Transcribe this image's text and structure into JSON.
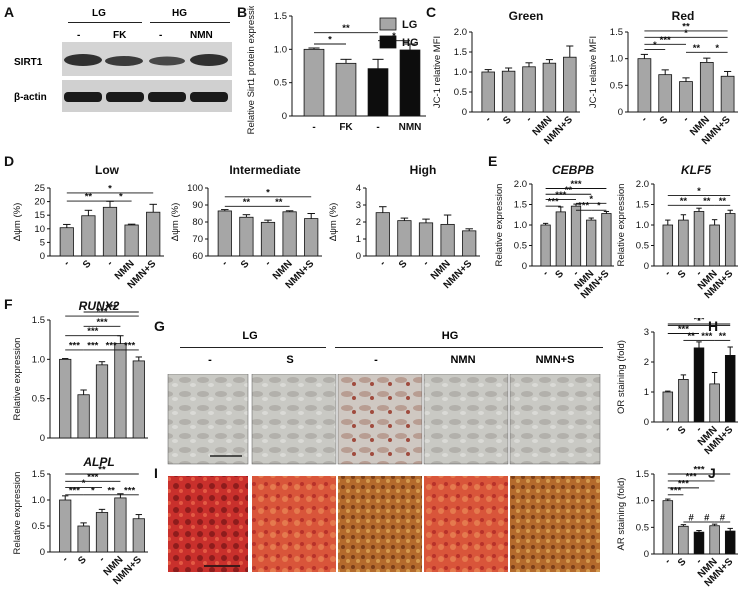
{
  "panel_letters": {
    "A": "A",
    "B": "B",
    "C": "C",
    "D": "D",
    "E": "E",
    "F": "F",
    "G": "G",
    "H": "H",
    "I": "I",
    "J": "J"
  },
  "blot": {
    "group_labels": [
      "LG",
      "HG"
    ],
    "lane_labels": [
      "-",
      "FK",
      "-",
      "NMN"
    ],
    "row_labels": [
      "SIRT1",
      "β-actin"
    ]
  },
  "micro": {
    "group_labels": [
      "LG",
      "HG"
    ],
    "column_labels": [
      "-",
      "S",
      "-",
      "NMN",
      "NMN+S"
    ]
  },
  "colors": {
    "gray": "#a6a6a6",
    "black": "#0d0d0d",
    "line": "#222222"
  },
  "chart_data": [
    {
      "id": "B",
      "type": "bar",
      "title": "",
      "ylabel": "Relative Sirt1 protein expression",
      "categories": [
        "-",
        "FK",
        "-",
        "NMN"
      ],
      "ylim": [
        0,
        1.5
      ],
      "yticks": [
        0,
        0.5,
        1.0,
        1.5
      ],
      "yticklabels": [
        "0",
        "0.5",
        "1.0",
        "1.5"
      ],
      "values": [
        1.0,
        0.79,
        0.71,
        0.99
      ],
      "errors": [
        0.02,
        0.06,
        0.14,
        0.09
      ],
      "colors": [
        "gray",
        "gray",
        "black",
        "black"
      ],
      "legend": [
        {
          "name": "LG",
          "color": "gray"
        },
        {
          "name": "HG",
          "color": "black"
        }
      ],
      "legend_position": "top-right",
      "sig": [
        {
          "i": 0,
          "j": 1,
          "label": "*",
          "y": 1.08
        },
        {
          "i": 2,
          "j": 3,
          "label": "*",
          "y": 1.13
        },
        {
          "i": 0,
          "j": 2,
          "label": "**",
          "y": 1.25
        }
      ]
    },
    {
      "id": "C1",
      "type": "bar",
      "title": "Green",
      "ylabel": "JC-1 relative MFI",
      "categories": [
        "-",
        "S",
        "-",
        "NMN",
        "NMN+S"
      ],
      "ylim": [
        0,
        2.0
      ],
      "yticks": [
        0,
        0.5,
        1.0,
        1.5,
        2.0
      ],
      "yticklabels": [
        "0",
        "0.5",
        "1.0",
        "1.5",
        "2.0"
      ],
      "values": [
        1.0,
        1.02,
        1.13,
        1.22,
        1.37
      ],
      "errors": [
        0.06,
        0.08,
        0.1,
        0.09,
        0.28
      ],
      "colors": [
        "gray",
        "gray",
        "gray",
        "gray",
        "gray"
      ],
      "sig": []
    },
    {
      "id": "C2",
      "type": "bar",
      "title": "Red",
      "ylabel": "JC-1 relative MFI",
      "categories": [
        "-",
        "S",
        "-",
        "NMN",
        "NMN+S"
      ],
      "ylim": [
        0,
        1.5
      ],
      "yticks": [
        0,
        0.5,
        1.0,
        1.5
      ],
      "yticklabels": [
        "0",
        "0.5",
        "1.0",
        "1.5"
      ],
      "values": [
        1.0,
        0.7,
        0.57,
        0.93,
        0.67
      ],
      "errors": [
        0.08,
        0.09,
        0.07,
        0.08,
        0.09
      ],
      "colors": [
        "gray",
        "gray",
        "gray",
        "gray",
        "gray"
      ],
      "sig": [
        {
          "i": 0,
          "j": 1,
          "label": "*",
          "y": 1.17
        },
        {
          "i": 3,
          "j": 4,
          "label": "*",
          "y": 1.12
        },
        {
          "i": 2,
          "j": 3,
          "label": "**",
          "y": 1.12
        },
        {
          "i": 0,
          "j": 2,
          "label": "***",
          "y": 1.27
        },
        {
          "i": 0,
          "j": 4,
          "label": "*",
          "y": 1.4
        },
        {
          "i": 0,
          "j": 4,
          "label": "**",
          "y": 1.52
        }
      ]
    },
    {
      "id": "D1",
      "type": "bar",
      "title": "Low",
      "ylabel": "Δψm (%)",
      "categories": [
        "-",
        "S",
        "-",
        "NMN",
        "NMN+S"
      ],
      "ylim": [
        0,
        25
      ],
      "yticks": [
        0,
        5,
        10,
        15,
        20,
        25
      ],
      "yticklabels": [
        "0",
        "5",
        "10",
        "15",
        "20",
        "25"
      ],
      "values": [
        10.4,
        14.8,
        17.9,
        11.4,
        16.1
      ],
      "errors": [
        1.2,
        2.0,
        2.2,
        0.3,
        2.9
      ],
      "colors": [
        "gray",
        "gray",
        "gray",
        "gray",
        "gray"
      ],
      "sig": [
        {
          "i": 0,
          "j": 2,
          "label": "**",
          "y": 20.2
        },
        {
          "i": 2,
          "j": 3,
          "label": "*",
          "y": 20.2
        },
        {
          "i": 0,
          "j": 4,
          "label": "*",
          "y": 23.2
        }
      ]
    },
    {
      "id": "D2",
      "type": "bar",
      "title": "Intermediate",
      "ylabel": "Δψm (%)",
      "categories": [
        "-",
        "S",
        "-",
        "NMN",
        "NMN+S"
      ],
      "ylim": [
        60,
        100
      ],
      "yticks": [
        60,
        70,
        80,
        90,
        100
      ],
      "yticklabels": [
        "60",
        "70",
        "80",
        "90",
        "100"
      ],
      "values": [
        86.5,
        82.8,
        79.8,
        86.0,
        82.0
      ],
      "errors": [
        0.8,
        1.5,
        1.3,
        0.6,
        3.0
      ],
      "colors": [
        "gray",
        "gray",
        "gray",
        "gray",
        "gray"
      ],
      "sig": [
        {
          "i": 0,
          "j": 2,
          "label": "**",
          "y": 89.2
        },
        {
          "i": 2,
          "j": 3,
          "label": "**",
          "y": 89.2
        },
        {
          "i": 0,
          "j": 4,
          "label": "*",
          "y": 94.8
        }
      ]
    },
    {
      "id": "D3",
      "type": "bar",
      "title": "High",
      "ylabel": "Δψm (%)",
      "categories": [
        "-",
        "S",
        "-",
        "NMN",
        "NMN+S"
      ],
      "ylim": [
        0,
        4
      ],
      "yticks": [
        0,
        1,
        2,
        3,
        4
      ],
      "yticklabels": [
        "0",
        "1",
        "2",
        "3",
        "4"
      ],
      "values": [
        2.55,
        2.08,
        1.95,
        1.86,
        1.48
      ],
      "errors": [
        0.35,
        0.15,
        0.22,
        0.55,
        0.12
      ],
      "colors": [
        "gray",
        "gray",
        "gray",
        "gray",
        "gray"
      ],
      "sig": []
    },
    {
      "id": "E1",
      "type": "bar",
      "title": "CEBPB",
      "title_italic": true,
      "ylabel": "Relative expression",
      "categories": [
        "-",
        "S",
        "-",
        "NMN",
        "NMN+S"
      ],
      "ylim": [
        0,
        2.0
      ],
      "yticks": [
        0,
        0.5,
        1.0,
        1.5,
        2.0
      ],
      "yticklabels": [
        "0",
        "0.5",
        "1.0",
        "1.5",
        "2.0"
      ],
      "values": [
        1.0,
        1.32,
        1.46,
        1.12,
        1.28
      ],
      "errors": [
        0.04,
        0.12,
        0.05,
        0.05,
        0.05
      ],
      "colors": [
        "gray",
        "gray",
        "gray",
        "gray",
        "gray"
      ],
      "sig": [
        {
          "i": 0,
          "j": 1,
          "label": "***",
          "y": 1.46
        },
        {
          "i": 2,
          "j": 3,
          "label": "***",
          "y": 1.36
        },
        {
          "i": 3,
          "j": 4,
          "label": "*",
          "y": 1.36
        },
        {
          "i": 2,
          "j": 4,
          "label": "*",
          "y": 1.53
        },
        {
          "i": 0,
          "j": 2,
          "label": "***",
          "y": 1.62
        },
        {
          "i": 0,
          "j": 3,
          "label": "**",
          "y": 1.75
        },
        {
          "i": 0,
          "j": 4,
          "label": "***",
          "y": 1.89
        }
      ]
    },
    {
      "id": "E2",
      "type": "bar",
      "title": "KLF5",
      "title_italic": true,
      "ylabel": "Relative expression",
      "categories": [
        "-",
        "S",
        "-",
        "NMN",
        "NMN+S"
      ],
      "ylim": [
        0,
        2.0
      ],
      "yticks": [
        0,
        0.5,
        1.0,
        1.5,
        2.0
      ],
      "yticklabels": [
        "0",
        "0.5",
        "1.0",
        "1.5",
        "2.0"
      ],
      "values": [
        1.0,
        1.12,
        1.33,
        1.0,
        1.28
      ],
      "errors": [
        0.12,
        0.13,
        0.08,
        0.13,
        0.08
      ],
      "colors": [
        "gray",
        "gray",
        "gray",
        "gray",
        "gray"
      ],
      "sig": [
        {
          "i": 0,
          "j": 2,
          "label": "**",
          "y": 1.48
        },
        {
          "i": 2,
          "j": 3,
          "label": "**",
          "y": 1.48
        },
        {
          "i": 3,
          "j": 4,
          "label": "**",
          "y": 1.48
        },
        {
          "i": 0,
          "j": 4,
          "label": "*",
          "y": 1.72
        }
      ]
    },
    {
      "id": "F1",
      "type": "bar",
      "title": "RUNX2",
      "title_italic": true,
      "ylabel": "Relative expression",
      "categories": [
        "-",
        "S",
        "-",
        "NMN",
        "NMN+S"
      ],
      "ylim": [
        0,
        1.5
      ],
      "yticks": [
        0,
        0.5,
        1.0,
        1.5
      ],
      "yticklabels": [
        "0",
        "0.5",
        "1.0",
        "1.5"
      ],
      "values": [
        1.0,
        0.55,
        0.93,
        1.2,
        0.98
      ],
      "errors": [
        0.01,
        0.06,
        0.04,
        0.1,
        0.05
      ],
      "colors": [
        "gray",
        "gray",
        "gray",
        "gray",
        "gray"
      ],
      "sig": [
        {
          "i": 0,
          "j": 1,
          "label": "***",
          "y": 1.12
        },
        {
          "i": 1,
          "j": 2,
          "label": "***",
          "y": 1.12
        },
        {
          "i": 2,
          "j": 3,
          "label": "***",
          "y": 1.12
        },
        {
          "i": 3,
          "j": 4,
          "label": "***",
          "y": 1.12
        },
        {
          "i": 0,
          "j": 3,
          "label": "***",
          "y": 1.3
        },
        {
          "i": 1,
          "j": 3,
          "label": "***",
          "y": 1.42
        },
        {
          "i": 0,
          "j": 4,
          "label": "***",
          "y": 1.55
        },
        {
          "i": 1,
          "j": 4,
          "label": "***",
          "y": 1.67
        }
      ]
    },
    {
      "id": "F2",
      "type": "bar",
      "title": "ALPL",
      "title_italic": true,
      "ylabel": "Relative expression",
      "categories": [
        "-",
        "S",
        "-",
        "NMN",
        "NMN+S"
      ],
      "ylim": [
        0,
        1.5
      ],
      "yticks": [
        0,
        0.5,
        1.0,
        1.5
      ],
      "yticklabels": [
        "0",
        "0.5",
        "1.0",
        "1.5"
      ],
      "values": [
        1.0,
        0.5,
        0.76,
        1.04,
        0.64
      ],
      "errors": [
        0.08,
        0.06,
        0.06,
        0.08,
        0.08
      ],
      "colors": [
        "gray",
        "gray",
        "gray",
        "gray",
        "gray"
      ],
      "sig": [
        {
          "i": 0,
          "j": 1,
          "label": "***",
          "y": 1.1
        },
        {
          "i": 1,
          "j": 2,
          "label": "*",
          "y": 1.1
        },
        {
          "i": 2,
          "j": 3,
          "label": "**",
          "y": 1.1
        },
        {
          "i": 3,
          "j": 4,
          "label": "***",
          "y": 1.1
        },
        {
          "i": 0,
          "j": 2,
          "label": "*",
          "y": 1.24
        },
        {
          "i": 0,
          "j": 3,
          "label": "***",
          "y": 1.36
        },
        {
          "i": 0,
          "j": 4,
          "label": "**",
          "y": 1.5
        }
      ]
    },
    {
      "id": "H",
      "type": "bar",
      "title": "",
      "ylabel": "OR staining (fold)",
      "categories": [
        "-",
        "S",
        "-",
        "NMN",
        "NMN+S"
      ],
      "ylim": [
        0,
        3
      ],
      "yticks": [
        0,
        1,
        2,
        3
      ],
      "yticklabels": [
        "0",
        "1",
        "2",
        "3"
      ],
      "values": [
        1.0,
        1.42,
        2.47,
        1.27,
        2.22
      ],
      "errors": [
        0.03,
        0.15,
        0.2,
        0.38,
        0.28
      ],
      "colors": [
        "gray",
        "gray",
        "black",
        "gray",
        "black"
      ],
      "sig": [
        {
          "i": 2,
          "j": 3,
          "label": "***",
          "y": 2.72
        },
        {
          "i": 3,
          "j": 4,
          "label": "**",
          "y": 2.72
        },
        {
          "i": 1,
          "j": 2,
          "label": "**",
          "y": 2.72
        },
        {
          "i": 0,
          "j": 2,
          "label": "***",
          "y": 2.95
        },
        {
          "i": 0,
          "j": 4,
          "label": "*",
          "y": 3.22
        },
        {
          "i": 0,
          "j": 4,
          "label": "***",
          "y": 3.5
        }
      ]
    },
    {
      "id": "J",
      "type": "bar",
      "title": "",
      "ylabel": "AR staining (fold)",
      "categories": [
        "-",
        "S",
        "-",
        "NMN",
        "NMN+S"
      ],
      "ylim": [
        0,
        1.5
      ],
      "yticks": [
        0,
        0.5,
        1.0,
        1.5
      ],
      "yticklabels": [
        "0",
        "0.5",
        "1.0",
        "1.5"
      ],
      "values": [
        1.0,
        0.52,
        0.41,
        0.53,
        0.43
      ],
      "errors": [
        0.03,
        0.03,
        0.03,
        0.03,
        0.05
      ],
      "colors": [
        "gray",
        "gray",
        "black",
        "gray",
        "black"
      ],
      "sig": [
        {
          "i": 0,
          "j": 1,
          "label": "***",
          "y": 1.11
        },
        {
          "i": 0,
          "j": 2,
          "label": "***",
          "y": 1.24
        },
        {
          "i": 0,
          "j": 3,
          "label": "***",
          "y": 1.37
        },
        {
          "i": 0,
          "j": 4,
          "label": "***",
          "y": 1.5
        },
        {
          "i": 1,
          "j": 2,
          "label": "#",
          "y": 0.6
        },
        {
          "i": 2,
          "j": 3,
          "label": "#",
          "y": 0.6
        },
        {
          "i": 3,
          "j": 4,
          "label": "#",
          "y": 0.6
        }
      ]
    }
  ]
}
